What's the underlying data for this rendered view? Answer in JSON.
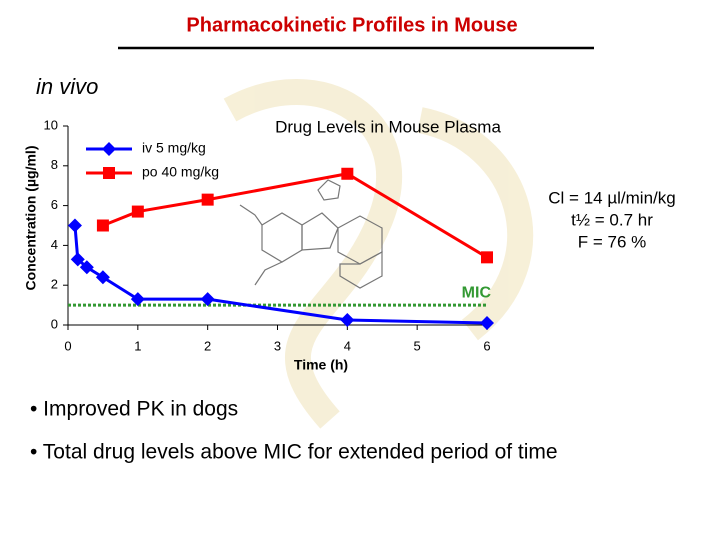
{
  "slide": {
    "title": "Pharmacokinetic Profiles in Mouse",
    "subtitle": "in vivo",
    "bullets": [
      "• Improved PK in dogs",
      "• Total drug levels above MIC for extended period of time"
    ]
  },
  "chart_data": {
    "type": "line",
    "title": "Drug Levels in Mouse Plasma",
    "x_label": "Time (h)",
    "y_label": "Concentration (µg/ml)",
    "xlim": [
      0,
      6
    ],
    "ylim": [
      0,
      10
    ],
    "xticks": [
      0,
      1,
      2,
      3,
      4,
      5,
      6
    ],
    "yticks": [
      0,
      2,
      4,
      6,
      8,
      10
    ],
    "series": [
      {
        "name": "iv 5 mg/kg",
        "color": "#0000ff",
        "marker": "diamond",
        "x": [
          0.1,
          0.14,
          0.27,
          0.5,
          1,
          2,
          4,
          6
        ],
        "values": [
          5.0,
          3.3,
          2.9,
          2.4,
          1.3,
          1.3,
          0.25,
          0.1
        ]
      },
      {
        "name": "po 40 mg/kg",
        "color": "#ff0000",
        "marker": "square",
        "x": [
          0.5,
          1,
          2,
          4,
          6
        ],
        "values": [
          5.0,
          5.7,
          6.3,
          7.6,
          3.4
        ]
      }
    ],
    "reference_line": {
      "value": 1,
      "label": "MIC",
      "color": "#339933"
    },
    "annotations": [
      "Cl  = 14 µl/min/kg",
      "t½ = 0.7 hr",
      "F = 76 %"
    ]
  }
}
